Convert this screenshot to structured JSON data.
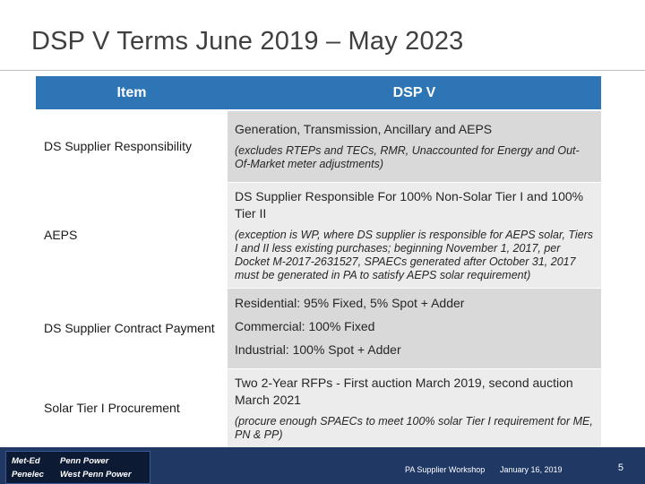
{
  "slide": {
    "title": "DSP V Terms June 2019 – May 2023"
  },
  "table": {
    "headers": [
      "Item",
      "DSP V"
    ],
    "rows": [
      {
        "item": "DS Supplier Responsibility",
        "main": "Generation, Transmission, Ancillary and AEPS",
        "note": "(excludes RTEPs and TECs, RMR, Unaccounted for Energy and Out-Of-Market meter adjustments)"
      },
      {
        "item": "AEPS",
        "main": "DS Supplier Responsible For 100% Non-Solar Tier I and 100% Tier II",
        "note": "(exception is WP, where DS supplier is responsible for AEPS solar, Tiers I and II less existing purchases; beginning November 1, 2017, per Docket M-2017-2631527, SPAECs generated after October 31, 2017 must be generated in PA to satisfy AEPS solar requirement)"
      },
      {
        "item": "DS Supplier Contract Payment",
        "lines": [
          "Residential: 95% Fixed, 5% Spot + Adder",
          "Commercial: 100% Fixed",
          "Industrial: 100% Spot + Adder"
        ]
      },
      {
        "item": "Solar Tier I Procurement",
        "main": "Two 2-Year RFPs - First auction March 2019, second auction March 2021",
        "note": "(procure enough SPAECs to meet 100% solar Tier I requirement for ME, PN & PP)"
      }
    ]
  },
  "footer": {
    "logos": [
      "Met-Ed",
      "Penn Power",
      "Penelec",
      "West Penn Power"
    ],
    "event": "PA Supplier Workshop",
    "date": "January 16, 2019",
    "page_number": "5"
  },
  "colors": {
    "header_blue": "#2e75b6",
    "cell_gray": "#d9d9d9",
    "footer_navy": "#1f3864"
  }
}
